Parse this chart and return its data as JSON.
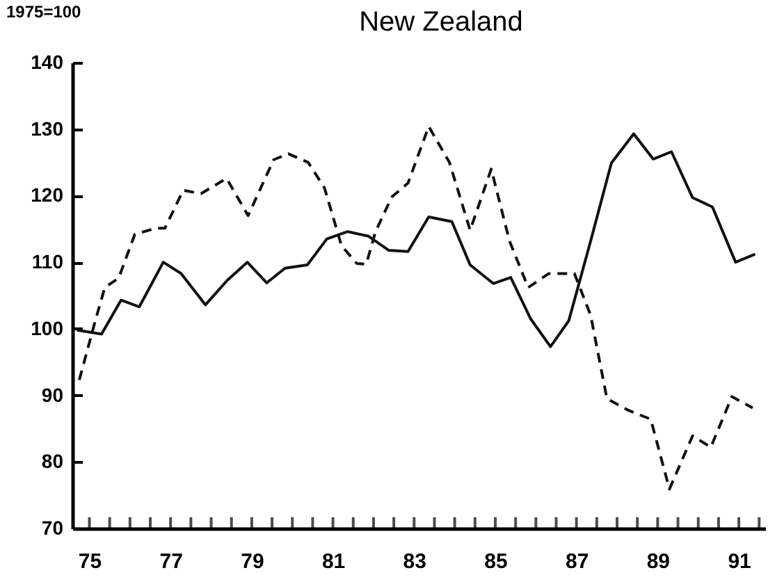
{
  "chart_data": {
    "type": "line",
    "title": "New Zealand",
    "ylabel": "1975=100",
    "series": [
      {
        "color": "#111111",
        "line_style": "solid",
        "x": [
          74.69,
          75.3,
          75.78,
          76.23,
          76.82,
          77.26,
          77.86,
          78.4,
          78.89,
          79.37,
          79.82,
          80.37,
          80.85,
          81.36,
          81.88,
          82.37,
          82.85,
          83.36,
          83.93,
          84.38,
          84.95,
          85.38,
          85.87,
          86.36,
          86.81,
          87.35,
          87.86,
          88.41,
          88.89,
          89.34,
          89.86,
          90.35,
          90.92,
          91.4
        ],
        "values": [
          99.8,
          99.2,
          104.3,
          103.3,
          110.0,
          108.3,
          103.6,
          107.3,
          110.0,
          106.9,
          109.1,
          109.6,
          113.5,
          114.6,
          113.9,
          111.8,
          111.6,
          116.8,
          116.1,
          109.6,
          106.8,
          107.7,
          101.5,
          97.3,
          101.2,
          113.2,
          124.9,
          129.3,
          125.5,
          126.6,
          119.7,
          118.3,
          110.0,
          111.2
        ]
      },
      {
        "color": "#111111",
        "line_style": "dashed",
        "x": [
          74.75,
          75.15,
          75.38,
          75.72,
          76.12,
          76.63,
          76.86,
          77.31,
          77.75,
          78.38,
          78.91,
          79.54,
          79.9,
          80.39,
          80.79,
          81.21,
          81.59,
          81.82,
          82.05,
          82.45,
          82.85,
          83.36,
          83.87,
          84.38,
          84.9,
          85.35,
          85.81,
          86.32,
          86.95,
          87.35,
          87.75,
          88.26,
          88.83,
          89.29,
          89.86,
          90.31,
          90.83,
          91.34
        ],
        "values": [
          92.3,
          101.3,
          106.2,
          107.6,
          114.2,
          115.1,
          115.1,
          120.8,
          120.3,
          122.6,
          117.0,
          125.4,
          126.3,
          125.0,
          121.2,
          112.5,
          109.8,
          109.7,
          114.6,
          119.8,
          121.9,
          130.4,
          125.0,
          114.8,
          124.0,
          113.2,
          106.2,
          108.3,
          108.3,
          102.0,
          89.5,
          87.8,
          86.4,
          75.9,
          83.9,
          82.2,
          89.8,
          88.1
        ]
      }
    ],
    "xlim": [
      74.58,
      91.65
    ],
    "xticks": [
      75,
      {
        "value": 75.5,
        "label": null
      },
      {
        "value": 76,
        "label": null
      },
      {
        "value": 76.5,
        "label": null
      },
      77,
      {
        "value": 77.5,
        "label": null
      },
      {
        "value": 78,
        "label": null
      },
      {
        "value": 78.5,
        "label": null
      },
      79,
      {
        "value": 79.5,
        "label": null
      },
      {
        "value": 80,
        "label": null
      },
      {
        "value": 80.5,
        "label": null
      },
      81,
      {
        "value": 81.5,
        "label": null
      },
      {
        "value": 82,
        "label": null
      },
      {
        "value": 82.5,
        "label": null
      },
      83,
      {
        "value": 83.5,
        "label": null
      },
      {
        "value": 84,
        "label": null
      },
      {
        "value": 84.5,
        "label": null
      },
      85,
      {
        "value": 85.5,
        "label": null
      },
      {
        "value": 86,
        "label": null
      },
      {
        "value": 86.5,
        "label": null
      },
      87,
      {
        "value": 87.5,
        "label": null
      },
      {
        "value": 88,
        "label": null
      },
      {
        "value": 88.5,
        "label": null
      },
      89,
      {
        "value": 89.5,
        "label": null
      },
      {
        "value": 90,
        "label": null
      },
      {
        "value": 90.5,
        "label": null
      },
      91,
      {
        "value": 91.5,
        "label": null
      }
    ],
    "ylim": [
      70,
      140
    ],
    "yticks": [
      70,
      80,
      90,
      100,
      110,
      120,
      130,
      140
    ],
    "grid": false,
    "marker": "none"
  }
}
